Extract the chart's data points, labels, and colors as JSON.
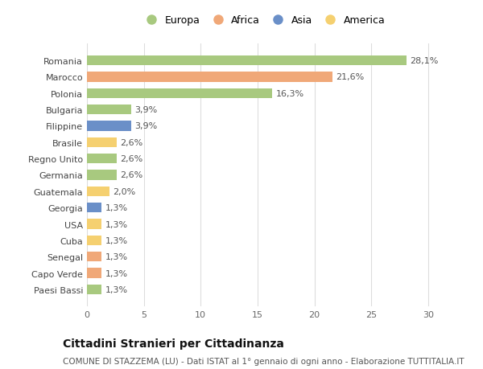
{
  "countries": [
    "Romania",
    "Marocco",
    "Polonia",
    "Bulgaria",
    "Filippine",
    "Brasile",
    "Regno Unito",
    "Germania",
    "Guatemala",
    "Georgia",
    "USA",
    "Cuba",
    "Senegal",
    "Capo Verde",
    "Paesi Bassi"
  ],
  "values": [
    28.1,
    21.6,
    16.3,
    3.9,
    3.9,
    2.6,
    2.6,
    2.6,
    2.0,
    1.3,
    1.3,
    1.3,
    1.3,
    1.3,
    1.3
  ],
  "labels": [
    "28,1%",
    "21,6%",
    "16,3%",
    "3,9%",
    "3,9%",
    "2,6%",
    "2,6%",
    "2,6%",
    "2,0%",
    "1,3%",
    "1,3%",
    "1,3%",
    "1,3%",
    "1,3%",
    "1,3%"
  ],
  "continents": [
    "Europa",
    "Africa",
    "Europa",
    "Europa",
    "Asia",
    "America",
    "Europa",
    "Europa",
    "America",
    "Asia",
    "America",
    "America",
    "Africa",
    "Africa",
    "Europa"
  ],
  "continent_colors": {
    "Europa": "#a8c97f",
    "Africa": "#f0a878",
    "Asia": "#6a8fc8",
    "America": "#f5d070"
  },
  "legend_order": [
    "Europa",
    "Africa",
    "Asia",
    "America"
  ],
  "bg_color": "#ffffff",
  "grid_color": "#dddddd",
  "title": "Cittadini Stranieri per Cittadinanza",
  "subtitle": "COMUNE DI STAZZEMA (LU) - Dati ISTAT al 1° gennaio di ogni anno - Elaborazione TUTTITALIA.IT",
  "xlim": [
    0,
    31
  ],
  "xticks": [
    0,
    5,
    10,
    15,
    20,
    25,
    30
  ],
  "bar_height": 0.6,
  "label_fontsize": 8,
  "tick_fontsize": 8,
  "title_fontsize": 10,
  "subtitle_fontsize": 7.5
}
